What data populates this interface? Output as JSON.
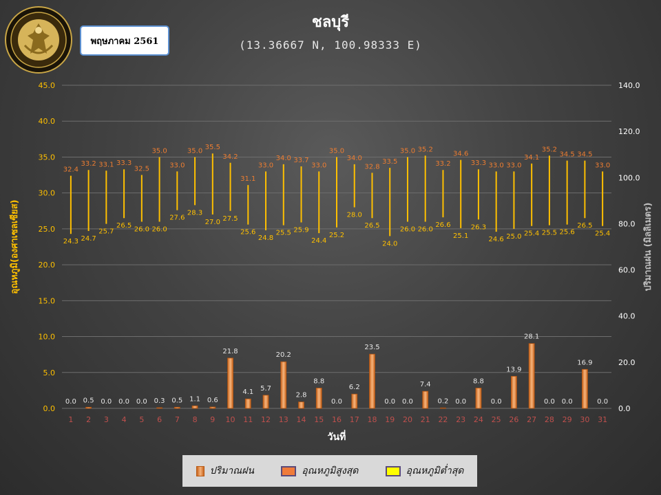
{
  "header": {
    "logo_text_top": "กรมอุตุนิยมวิทยา",
    "logo_text_bottom": "METEOROLOGICAL DEPARTMENT",
    "month_label": "พฤษภาคม 2561"
  },
  "colors": {
    "rain_bar": "#ed7d31",
    "max_temp_label": "#ed7d31",
    "min_temp_label": "#ffc000",
    "temp_range_line": "#ffc000",
    "left_axis_text": "#ffc000",
    "x_tick_text": "#c0504d"
  },
  "chart_data": {
    "type": "bar",
    "title": "ชลบุรี",
    "subtitle": "(13.36667 N, 100.98333 E)",
    "xlabel": "วันที่",
    "ylabel_left": "อุณหภูมิ(องศาเซลเซียส)",
    "ylabel_right": "ปริมาณฝน (มิลลิเมตร)",
    "ylim_left": [
      0,
      45
    ],
    "yticks_left": [
      "0.0",
      "5.0",
      "10.0",
      "15.0",
      "20.0",
      "25.0",
      "30.0",
      "35.0",
      "40.0",
      "45.0"
    ],
    "ylim_right": [
      0,
      140
    ],
    "yticks_right": [
      "0.0",
      "20.0",
      "40.0",
      "60.0",
      "80.0",
      "100.0",
      "120.0",
      "140.0"
    ],
    "grid": true,
    "legend_position": "bottom",
    "categories": [
      "1",
      "2",
      "3",
      "4",
      "5",
      "6",
      "7",
      "8",
      "9",
      "10",
      "11",
      "12",
      "13",
      "14",
      "15",
      "16",
      "17",
      "18",
      "19",
      "20",
      "21",
      "22",
      "23",
      "24",
      "25",
      "26",
      "27",
      "28",
      "29",
      "30",
      "31"
    ],
    "series": [
      {
        "name": "ปริมาณฝน",
        "axis": "right",
        "kind": "bar",
        "values": [
          0.0,
          0.5,
          0.0,
          0.0,
          0.0,
          0.3,
          0.5,
          1.1,
          0.6,
          21.8,
          4.1,
          5.7,
          20.2,
          2.8,
          8.8,
          0.0,
          6.2,
          23.5,
          0.0,
          0.0,
          7.4,
          0.2,
          0.0,
          8.8,
          0.0,
          13.9,
          28.1,
          0.0,
          0.0,
          16.9,
          0.0
        ]
      },
      {
        "name": "อุณหภูมิสูงสุด",
        "axis": "left",
        "kind": "range-top",
        "values": [
          32.4,
          33.2,
          33.1,
          33.3,
          32.5,
          35.0,
          33.0,
          35.0,
          35.5,
          34.2,
          31.1,
          33.0,
          34.0,
          33.7,
          33.0,
          35.0,
          34.0,
          32.8,
          33.5,
          35.0,
          35.2,
          33.2,
          34.6,
          33.3,
          33.0,
          33.0,
          34.1,
          35.2,
          34.5,
          34.5,
          33.0
        ]
      },
      {
        "name": "อุณหภูมิต่ำสุด",
        "axis": "left",
        "kind": "range-bottom",
        "values": [
          24.3,
          24.7,
          25.7,
          26.5,
          26.0,
          26.0,
          27.6,
          28.3,
          27.0,
          27.5,
          25.6,
          24.8,
          25.5,
          25.9,
          24.4,
          25.2,
          28.0,
          26.5,
          24.0,
          26.0,
          26.0,
          26.6,
          25.1,
          26.3,
          24.6,
          25.0,
          25.4,
          25.5,
          25.6,
          26.5,
          25.4
        ]
      }
    ]
  }
}
